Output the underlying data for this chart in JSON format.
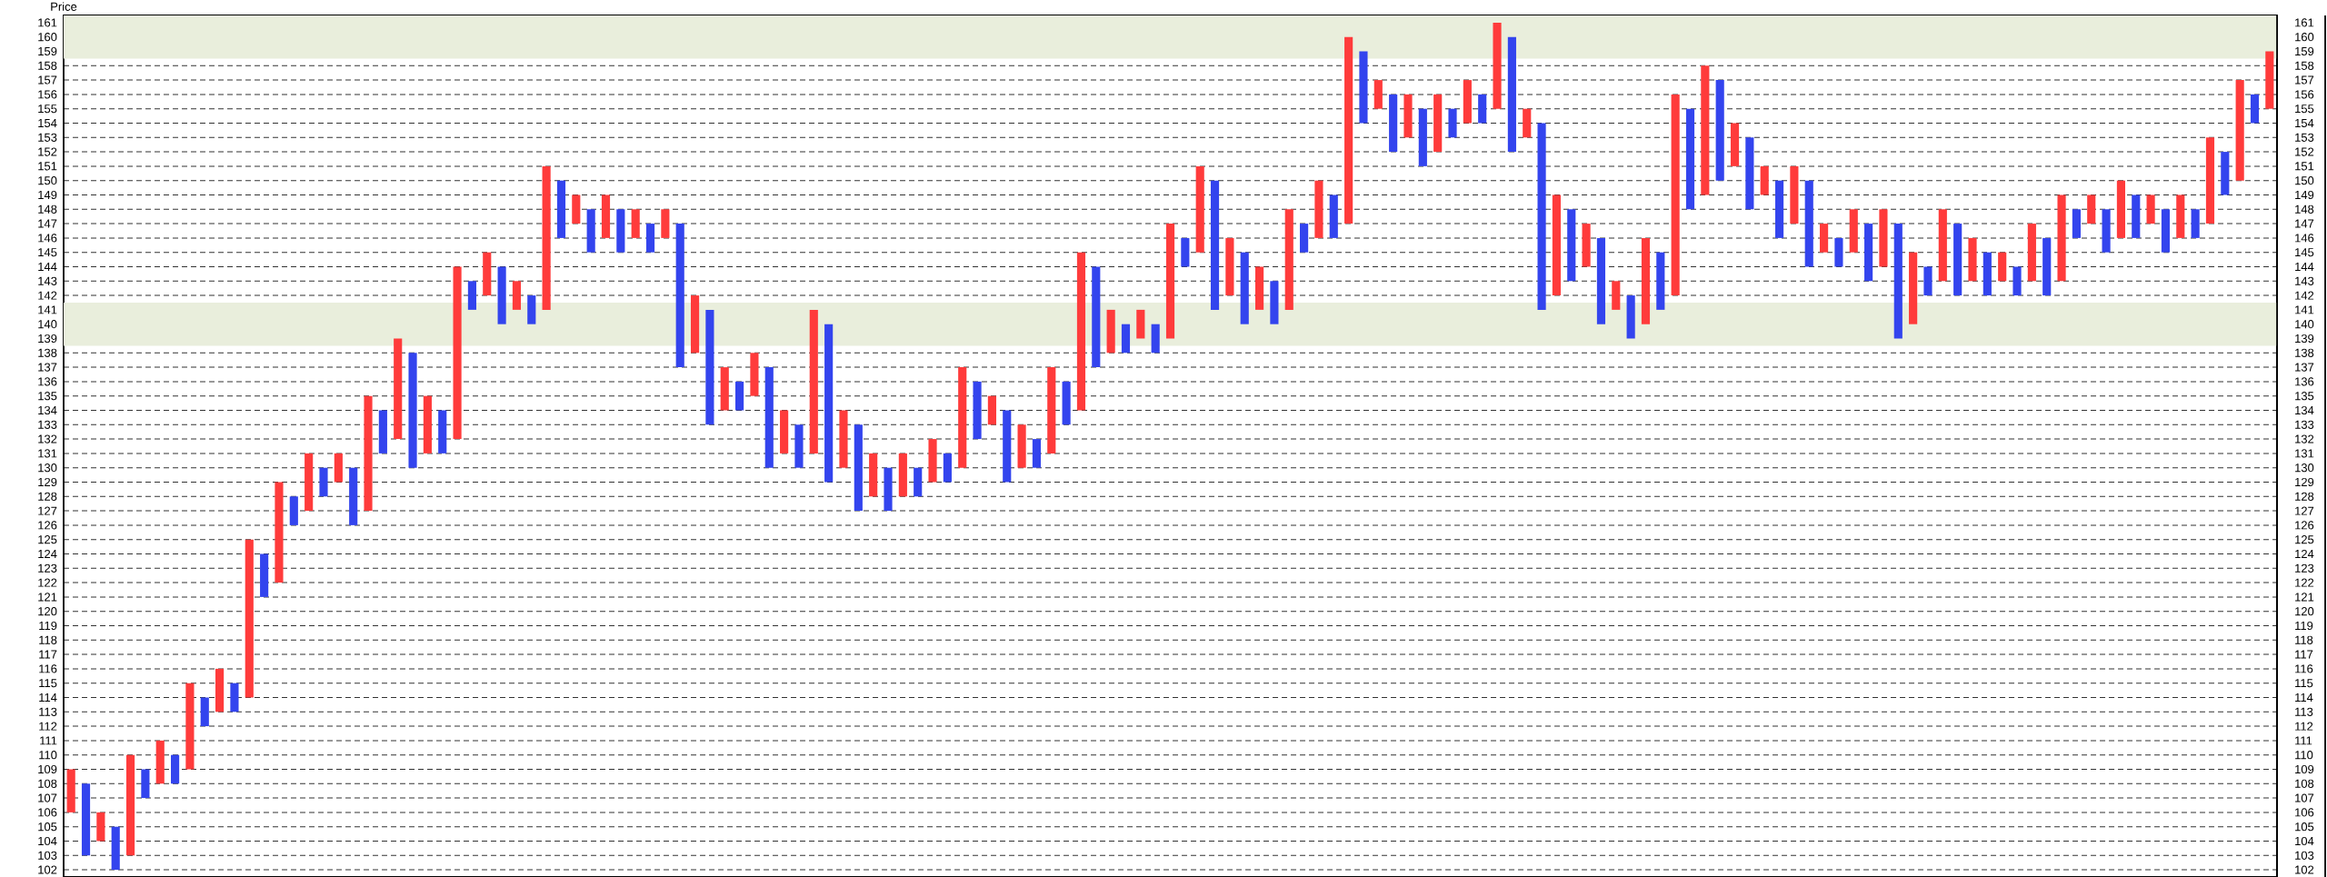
{
  "chart_data": {
    "type": "bar",
    "ylabel": "Price",
    "categories": [
      null,
      null,
      null,
      null,
      null,
      null,
      null,
      null,
      null,
      null,
      null,
      null,
      null,
      null,
      null,
      null,
      null,
      null,
      null,
      null,
      null,
      null,
      null,
      null,
      null,
      null,
      null,
      null,
      null,
      null,
      null,
      null,
      null,
      null,
      null,
      null,
      null,
      null,
      null,
      null,
      null,
      null,
      null,
      null,
      null,
      null,
      null,
      null,
      null,
      null,
      null,
      null,
      null,
      null,
      null,
      null,
      null,
      null,
      null,
      null,
      null,
      null,
      null,
      null,
      null,
      null,
      null,
      null,
      null,
      null,
      null,
      null,
      null,
      null,
      null,
      null,
      null,
      null,
      null,
      null,
      null,
      null,
      null,
      null,
      null,
      null,
      null,
      null,
      null,
      null,
      null,
      null,
      null,
      null,
      null,
      null,
      null,
      null,
      null,
      null,
      null,
      null,
      null,
      null,
      null,
      null,
      null,
      null,
      null,
      null,
      null,
      null,
      null,
      null,
      null,
      null,
      null,
      null,
      null,
      null,
      null,
      null,
      null,
      null,
      null,
      null,
      null,
      null,
      null,
      null,
      null,
      null,
      null,
      null,
      null,
      null,
      null,
      null,
      null,
      null,
      null,
      null,
      null,
      null,
      null,
      null,
      null,
      null,
      null
    ],
    "series": [
      {
        "color": "#ff3b3b",
        "base": [
          106,
          null,
          104,
          null,
          103,
          null,
          108,
          null,
          109,
          null,
          113,
          null,
          114,
          null,
          122,
          null,
          127,
          null,
          129,
          null,
          127,
          null,
          132,
          null,
          131,
          null,
          132,
          null,
          142,
          null,
          141,
          null,
          141,
          null,
          147,
          null,
          146,
          null,
          146,
          null,
          146,
          null,
          138,
          null,
          134,
          null,
          135,
          null,
          131,
          null,
          131,
          null,
          130,
          null,
          128,
          null,
          128,
          null,
          129,
          null,
          130,
          null,
          133,
          null,
          130,
          null,
          131,
          null,
          134,
          null,
          138,
          null,
          139,
          null,
          139,
          null,
          145,
          null,
          142,
          null,
          141,
          null,
          141,
          null,
          146,
          null,
          147,
          null,
          155,
          null,
          153,
          null,
          152,
          null,
          154,
          null,
          155,
          null,
          153,
          null,
          142,
          null,
          144,
          null,
          141,
          null,
          140,
          null,
          142,
          null,
          149,
          null,
          151,
          null,
          149,
          null,
          147,
          null,
          145,
          null,
          145,
          null,
          144,
          null,
          140,
          null,
          143,
          null,
          143,
          null,
          143,
          null,
          143,
          null,
          143,
          null,
          147,
          null,
          146,
          null,
          147,
          null,
          146,
          null,
          147,
          null,
          150,
          null,
          155
        ],
        "values": [
          3,
          null,
          2,
          null,
          7,
          null,
          3,
          null,
          6,
          null,
          3,
          null,
          11,
          null,
          7,
          null,
          4,
          null,
          2,
          null,
          8,
          null,
          7,
          null,
          4,
          null,
          12,
          null,
          3,
          null,
          2,
          null,
          10,
          null,
          2,
          null,
          3,
          null,
          2,
          null,
          2,
          null,
          4,
          null,
          3,
          null,
          3,
          null,
          3,
          null,
          10,
          null,
          4,
          null,
          3,
          null,
          3,
          null,
          3,
          null,
          7,
          null,
          2,
          null,
          3,
          null,
          6,
          null,
          11,
          null,
          3,
          null,
          2,
          null,
          8,
          null,
          6,
          null,
          4,
          null,
          3,
          null,
          7,
          null,
          4,
          null,
          13,
          null,
          2,
          null,
          3,
          null,
          4,
          null,
          3,
          null,
          6,
          null,
          2,
          null,
          7,
          null,
          3,
          null,
          2,
          null,
          6,
          null,
          14,
          null,
          9,
          null,
          3,
          null,
          2,
          null,
          4,
          null,
          2,
          null,
          3,
          null,
          4,
          null,
          5,
          null,
          5,
          null,
          3,
          null,
          2,
          null,
          4,
          null,
          6,
          null,
          2,
          null,
          4,
          null,
          2,
          null,
          3,
          null,
          6,
          null,
          7,
          null,
          4
        ]
      },
      {
        "color": "#3344ee",
        "base": [
          null,
          103,
          null,
          102,
          null,
          107,
          null,
          108,
          null,
          112,
          null,
          113,
          null,
          121,
          null,
          126,
          null,
          128,
          null,
          126,
          null,
          131,
          null,
          130,
          null,
          131,
          null,
          141,
          null,
          140,
          null,
          140,
          null,
          146,
          null,
          145,
          null,
          145,
          null,
          145,
          null,
          137,
          null,
          133,
          null,
          134,
          null,
          130,
          null,
          130,
          null,
          129,
          null,
          127,
          null,
          127,
          null,
          128,
          null,
          129,
          null,
          132,
          null,
          129,
          null,
          130,
          null,
          133,
          null,
          137,
          null,
          138,
          null,
          138,
          null,
          144,
          null,
          141,
          null,
          140,
          null,
          140,
          null,
          145,
          null,
          146,
          null,
          154,
          null,
          152,
          null,
          151,
          null,
          153,
          null,
          154,
          null,
          152,
          null,
          141,
          null,
          143,
          null,
          140,
          null,
          139,
          null,
          141,
          null,
          148,
          null,
          150,
          null,
          148,
          null,
          146,
          null,
          144,
          null,
          144,
          null,
          143,
          null,
          139,
          null,
          142,
          null,
          142,
          null,
          142,
          null,
          142,
          null,
          142,
          null,
          146,
          null,
          145,
          null,
          146,
          null,
          145,
          null,
          146,
          null,
          149,
          null,
          154,
          null
        ],
        "values": [
          null,
          5,
          null,
          3,
          null,
          2,
          null,
          2,
          null,
          2,
          null,
          2,
          null,
          3,
          null,
          2,
          null,
          2,
          null,
          4,
          null,
          3,
          null,
          8,
          null,
          3,
          null,
          2,
          null,
          4,
          null,
          2,
          null,
          4,
          null,
          3,
          null,
          3,
          null,
          2,
          null,
          10,
          null,
          8,
          null,
          2,
          null,
          7,
          null,
          3,
          null,
          11,
          null,
          6,
          null,
          3,
          null,
          2,
          null,
          2,
          null,
          4,
          null,
          5,
          null,
          2,
          null,
          3,
          null,
          7,
          null,
          2,
          null,
          2,
          null,
          2,
          null,
          9,
          null,
          5,
          null,
          3,
          null,
          2,
          null,
          3,
          null,
          5,
          null,
          4,
          null,
          4,
          null,
          2,
          null,
          2,
          null,
          8,
          null,
          13,
          null,
          5,
          null,
          6,
          null,
          3,
          null,
          4,
          null,
          7,
          null,
          7,
          null,
          5,
          null,
          4,
          null,
          6,
          null,
          2,
          null,
          4,
          null,
          8,
          null,
          2,
          null,
          5,
          null,
          3,
          null,
          2,
          null,
          4,
          null,
          2,
          null,
          3,
          null,
          3,
          null,
          3,
          null,
          2,
          null,
          3,
          null,
          2,
          null
        ]
      }
    ],
    "ylim": [
      101.5,
      161.5
    ],
    "yticks": [
      102,
      103,
      104,
      105,
      106,
      107,
      108,
      109,
      110,
      111,
      112,
      113,
      114,
      115,
      116,
      117,
      118,
      119,
      120,
      121,
      122,
      123,
      124,
      125,
      126,
      127,
      128,
      129,
      130,
      131,
      132,
      133,
      134,
      135,
      136,
      137,
      138,
      139,
      140,
      141,
      142,
      143,
      144,
      145,
      146,
      147,
      148,
      149,
      150,
      151,
      152,
      153,
      154,
      155,
      156,
      157,
      158,
      159,
      160,
      161
    ],
    "y2lim": [
      101.5,
      161.5
    ],
    "y2ticks": [
      102,
      103,
      104,
      105,
      106,
      107,
      108,
      109,
      110,
      111,
      112,
      113,
      114,
      115,
      116,
      117,
      118,
      119,
      120,
      121,
      122,
      123,
      124,
      125,
      126,
      127,
      128,
      129,
      130,
      131,
      132,
      133,
      134,
      135,
      136,
      137,
      138,
      139,
      140,
      141,
      142,
      143,
      144,
      145,
      146,
      147,
      148,
      149,
      150,
      151,
      152,
      153,
      154,
      155,
      156,
      157,
      158,
      159,
      160,
      161
    ],
    "bands": [
      {
        "axis": "y",
        "from": 138.5,
        "to": 141.5,
        "color": "#e9eedc"
      },
      {
        "axis": "y",
        "from": 158.5,
        "to": 161.5,
        "color": "#e9eedc"
      }
    ],
    "grid": "y",
    "tick_labels": "y"
  }
}
